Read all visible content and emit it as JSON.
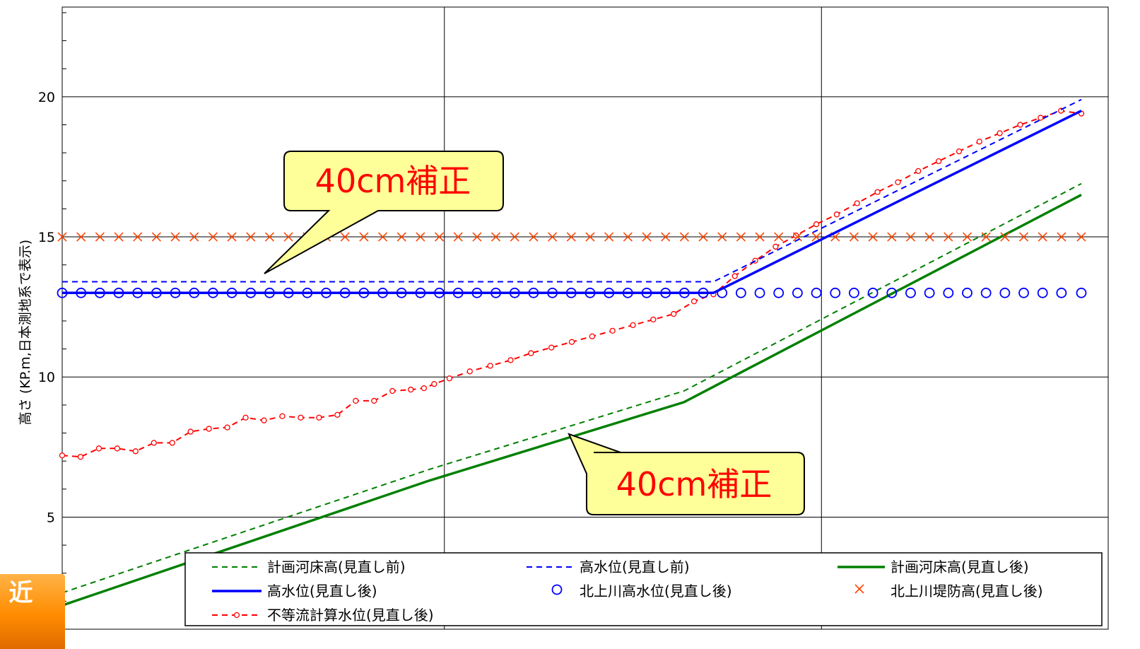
{
  "chart_data": {
    "type": "line",
    "ylabel": "高さ (KP.m,日本測地系で表示)",
    "ytick_labels": [
      "5",
      "10",
      "15",
      "20"
    ],
    "ylim": [
      1,
      23.2
    ],
    "x_range": [
      0,
      100
    ],
    "grid": true,
    "series": [
      {
        "name": "計画河床高(見直し前)",
        "color": "#008000",
        "style": "dashed",
        "x": [
          0,
          36,
          61,
          100
        ],
        "y": [
          2.3,
          6.7,
          9.5,
          16.9
        ]
      },
      {
        "name": "高水位(見直し前)",
        "color": "#0000ff",
        "style": "dashed",
        "x": [
          0,
          63.9,
          100
        ],
        "y": [
          13.4,
          13.4,
          19.9
        ]
      },
      {
        "name": "計画河床高(見直し後)",
        "color": "#008000",
        "style": "solid",
        "x": [
          0,
          36,
          61,
          100
        ],
        "y": [
          1.85,
          6.3,
          9.1,
          16.5
        ]
      },
      {
        "name": "高水位(見直し後)",
        "color": "#0000ff",
        "style": "solid",
        "x": [
          0,
          63.9,
          100
        ],
        "y": [
          13.0,
          13.0,
          19.5
        ]
      },
      {
        "name": "北上川高水位(見直し後)",
        "color": "#0000ff",
        "style": "circle",
        "x": [
          0,
          1.85,
          3.7,
          5.55,
          7.4,
          9.25,
          11.1,
          12.95,
          14.8,
          16.65,
          18.5,
          20.35,
          22.2,
          24.05,
          25.9,
          27.75,
          29.6,
          31.45,
          33.3,
          35.15,
          37,
          38.85,
          40.7,
          42.55,
          44.4,
          46.25,
          48.1,
          49.95,
          51.8,
          53.65,
          55.5,
          57.35,
          59.2,
          61.05,
          62.9,
          64.75,
          66.6,
          68.45,
          70.3,
          72.15,
          74,
          75.85,
          77.7,
          79.55,
          81.4,
          83.25,
          85.1,
          86.95,
          88.8,
          90.65,
          92.5,
          94.35,
          96.2,
          98.05,
          100
        ],
        "y": [
          13.0,
          13.0,
          13.0,
          13.0,
          13.0,
          13.0,
          13.0,
          13.0,
          13.0,
          13.0,
          13.0,
          13.0,
          13.0,
          13.0,
          13.0,
          13.0,
          13.0,
          13.0,
          13.0,
          13.0,
          13.0,
          13.0,
          13.0,
          13.0,
          13.0,
          13.0,
          13.0,
          13.0,
          13.0,
          13.0,
          13.0,
          13.0,
          13.0,
          13.0,
          13.0,
          13.0,
          13.0,
          13.0,
          13.0,
          13.0,
          13.0,
          13.0,
          13.0,
          13.0,
          13.0,
          13.0,
          13.0,
          13.0,
          13.0,
          13.0,
          13.0,
          13.0,
          13.0,
          13.0,
          13.0
        ]
      },
      {
        "name": "北上川堤防高(見直し後)",
        "color": "#ff4500",
        "style": "cross",
        "x": [
          0,
          1.85,
          3.7,
          5.55,
          7.4,
          9.25,
          11.1,
          12.95,
          14.8,
          16.65,
          18.5,
          20.35,
          22.2,
          24.05,
          25.9,
          27.75,
          29.6,
          31.45,
          33.3,
          35.15,
          37,
          38.85,
          40.7,
          42.55,
          44.4,
          46.25,
          48.1,
          49.95,
          51.8,
          53.65,
          55.5,
          57.35,
          59.2,
          61.05,
          62.9,
          64.75,
          66.6,
          68.45,
          70.3,
          72.15,
          74,
          75.85,
          77.7,
          79.55,
          81.4,
          83.25,
          85.1,
          86.95,
          88.8,
          90.65,
          92.5,
          94.35,
          96.2,
          98.05,
          100
        ],
        "y": [
          15.0,
          15.0,
          15.0,
          15.0,
          15.0,
          15.0,
          15.0,
          15.0,
          15.0,
          15.0,
          15.0,
          15.0,
          15.0,
          15.0,
          15.0,
          15.0,
          15.0,
          15.0,
          15.0,
          15.0,
          15.0,
          15.0,
          15.0,
          15.0,
          15.0,
          15.0,
          15.0,
          15.0,
          15.0,
          15.0,
          15.0,
          15.0,
          15.0,
          15.0,
          15.0,
          15.0,
          15.0,
          15.0,
          15.0,
          15.0,
          15.0,
          15.0,
          15.0,
          15.0,
          15.0,
          15.0,
          15.0,
          15.0,
          15.0,
          15.0,
          15.0,
          15.0,
          15.0,
          15.0,
          15.0
        ]
      },
      {
        "name": "不等流計算水位(見直し後)",
        "color": "#ff0000",
        "style": "dashed-marker",
        "x": [
          0,
          1.8,
          3.6,
          5.4,
          7.2,
          9.0,
          10.8,
          12.6,
          14.4,
          16.2,
          18.0,
          19.8,
          21.6,
          23.4,
          25.2,
          27.0,
          28.8,
          30.6,
          32.4,
          34.2,
          35.5,
          36.5,
          38.0,
          40.0,
          42.0,
          44.0,
          46.0,
          48.0,
          50.0,
          52.0,
          54.0,
          56.0,
          58.0,
          60.0,
          62.0,
          63.9,
          66,
          68,
          70,
          72,
          74,
          76,
          78,
          80,
          82,
          84,
          86,
          88,
          90,
          92,
          94,
          96,
          98,
          100
        ],
        "y": [
          7.2,
          7.15,
          7.45,
          7.45,
          7.35,
          7.65,
          7.65,
          8.05,
          8.15,
          8.2,
          8.55,
          8.45,
          8.6,
          8.55,
          8.55,
          8.65,
          9.15,
          9.15,
          9.5,
          9.55,
          9.6,
          9.75,
          9.95,
          10.2,
          10.4,
          10.6,
          10.85,
          11.05,
          11.25,
          11.45,
          11.65,
          11.85,
          12.05,
          12.25,
          12.7,
          12.95,
          13.6,
          14.15,
          14.65,
          15.05,
          15.45,
          15.8,
          16.2,
          16.6,
          16.95,
          17.35,
          17.7,
          18.05,
          18.4,
          18.7,
          19.0,
          19.25,
          19.5,
          19.4
        ]
      }
    ],
    "annotations": [
      "40cm補正",
      "40cm補正"
    ],
    "legend": "bottom"
  },
  "tab_label": "近"
}
